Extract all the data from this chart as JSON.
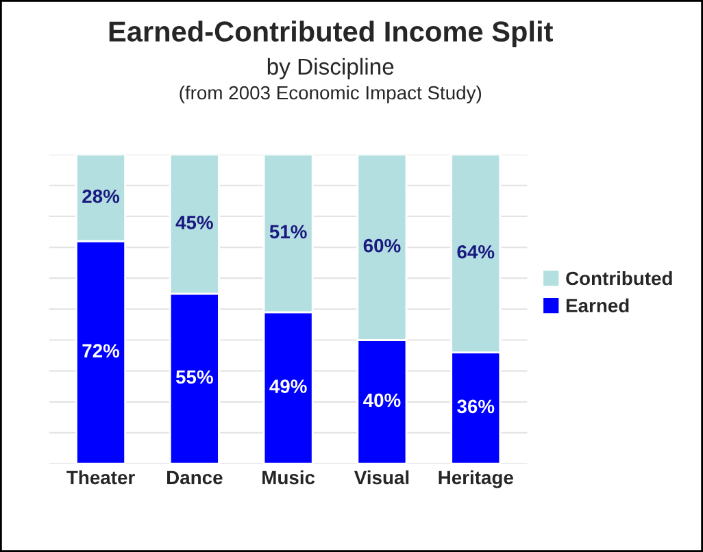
{
  "chart_data": {
    "type": "bar",
    "title": "Earned-Contributed Income Split",
    "subtitle": "by Discipline",
    "annotations": [
      "(from 2003 Economic Impact Study)"
    ],
    "categories": [
      "Theater",
      "Dance",
      "Music",
      "Visual",
      "Heritage"
    ],
    "stacked": true,
    "series": [
      {
        "name": "Earned",
        "color": "#0000ff",
        "values": [
          72,
          55,
          49,
          40,
          36
        ],
        "value_labels": [
          "72%",
          "55%",
          "49%",
          "40%",
          "36%"
        ]
      },
      {
        "name": "Contributed",
        "color": "#b4dfe0",
        "values": [
          28,
          45,
          51,
          60,
          64
        ],
        "value_labels": [
          "28%",
          "45%",
          "51%",
          "60%",
          "64%"
        ]
      }
    ],
    "ylim": [
      0,
      100
    ],
    "yticks": [
      {
        "value": 0,
        "label": null
      },
      {
        "value": 10,
        "label": null
      },
      {
        "value": 20,
        "label": null
      },
      {
        "value": 30,
        "label": null
      },
      {
        "value": 40,
        "label": null
      },
      {
        "value": 50,
        "label": null
      },
      {
        "value": 60,
        "label": null
      },
      {
        "value": 70,
        "label": null
      },
      {
        "value": 80,
        "label": null
      },
      {
        "value": 90,
        "label": null
      },
      {
        "value": 100,
        "label": null
      }
    ],
    "grid": "y",
    "legend": "right"
  }
}
